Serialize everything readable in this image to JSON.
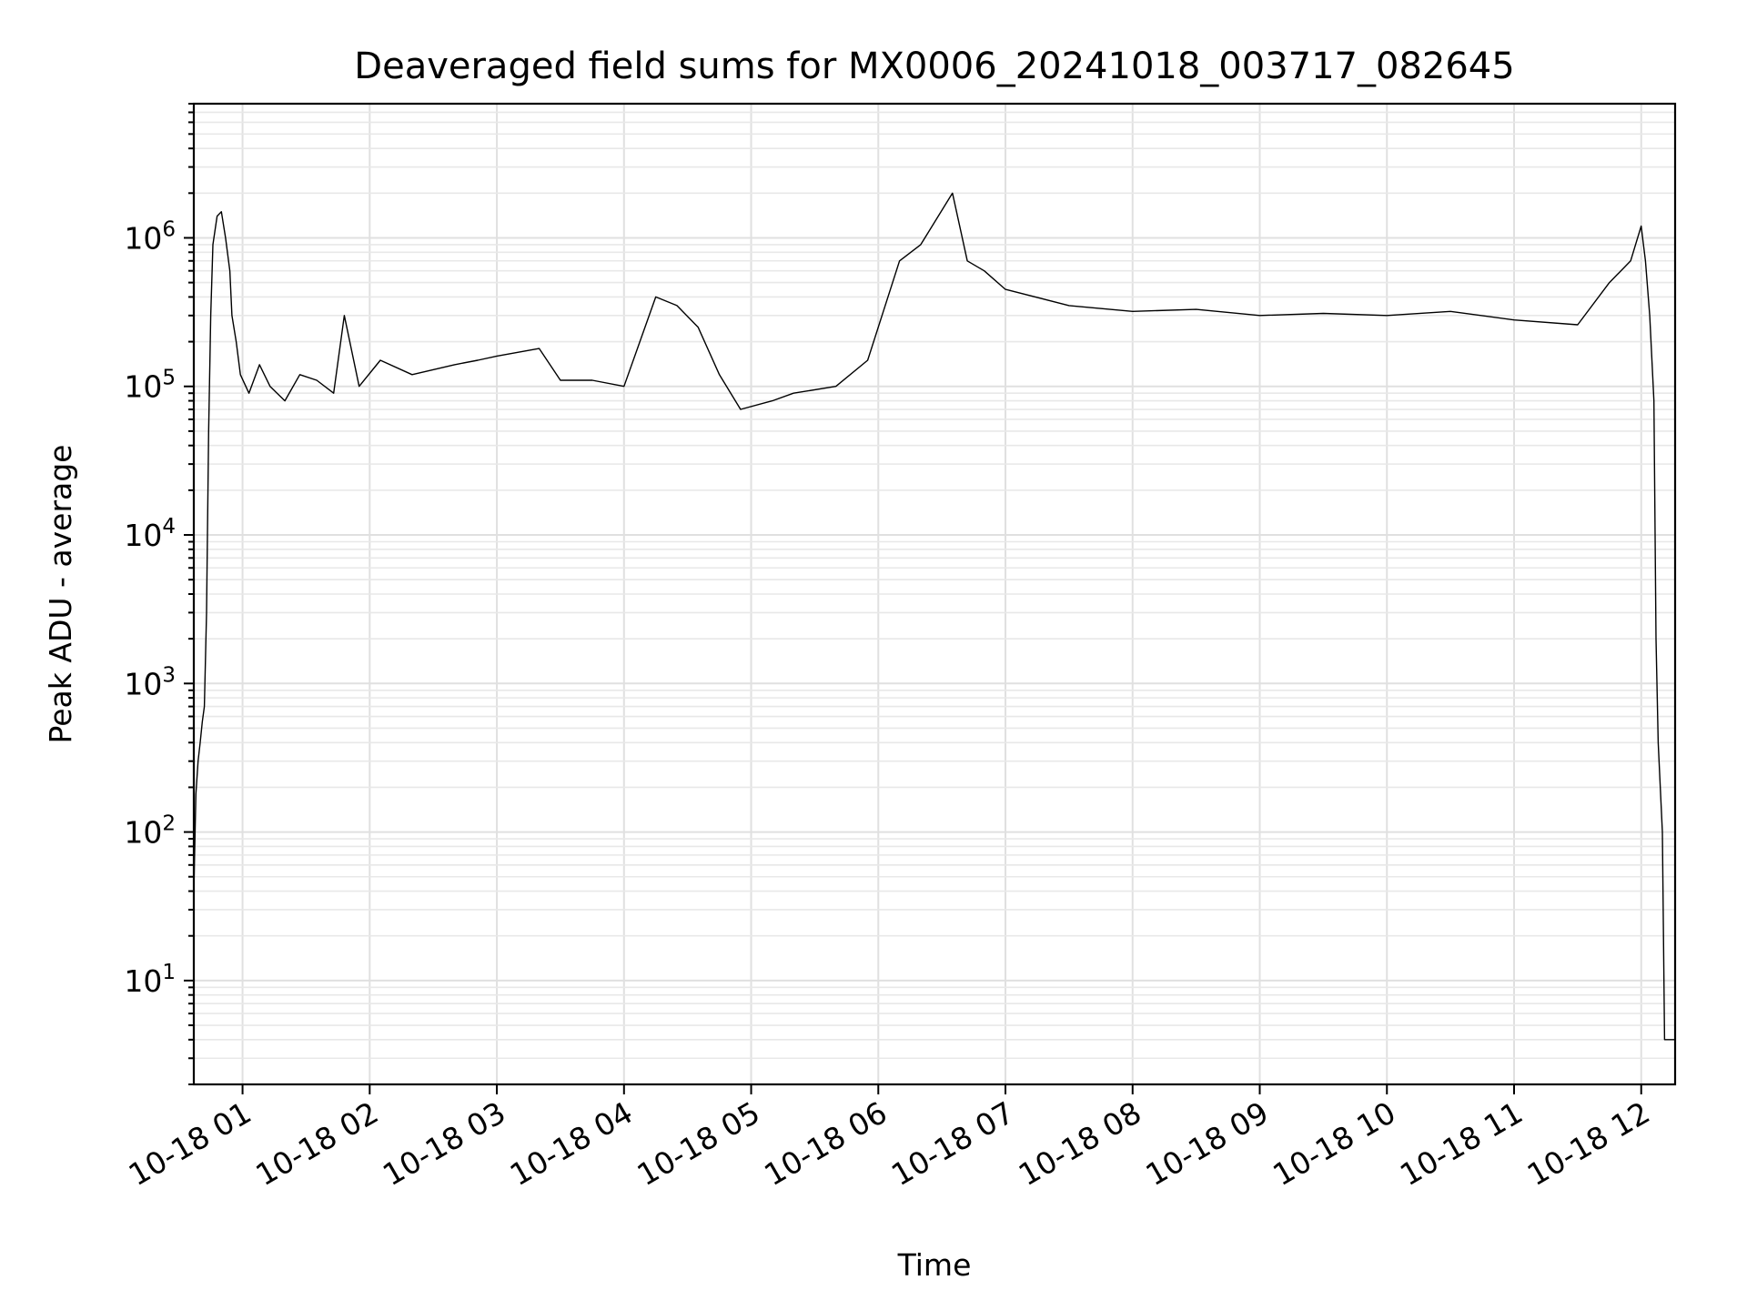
{
  "chart_data": {
    "type": "line",
    "title": "Deaveraged field sums for MX0006_20241018_003717_082645",
    "xlabel": "Time",
    "ylabel": "Peak ADU - average",
    "yscale": "log",
    "xlim": [
      "2024-10-18 00:37",
      "2024-10-18 12:16"
    ],
    "ylim": [
      2,
      8000000
    ],
    "x_ticks": [
      {
        "value": "2024-10-18 01:00",
        "label": "10-18 01"
      },
      {
        "value": "2024-10-18 02:00",
        "label": "10-18 02"
      },
      {
        "value": "2024-10-18 03:00",
        "label": "10-18 03"
      },
      {
        "value": "2024-10-18 04:00",
        "label": "10-18 04"
      },
      {
        "value": "2024-10-18 05:00",
        "label": "10-18 05"
      },
      {
        "value": "2024-10-18 06:00",
        "label": "10-18 06"
      },
      {
        "value": "2024-10-18 07:00",
        "label": "10-18 07"
      },
      {
        "value": "2024-10-18 08:00",
        "label": "10-18 08"
      },
      {
        "value": "2024-10-18 09:00",
        "label": "10-18 09"
      },
      {
        "value": "2024-10-18 10:00",
        "label": "10-18 10"
      },
      {
        "value": "2024-10-18 11:00",
        "label": "10-18 11"
      },
      {
        "value": "2024-10-18 12:00",
        "label": "10-18 12"
      }
    ],
    "y_ticks": [
      {
        "value": 10,
        "base": "10",
        "exp": "1"
      },
      {
        "value": 100,
        "base": "10",
        "exp": "2"
      },
      {
        "value": 1000,
        "base": "10",
        "exp": "3"
      },
      {
        "value": 10000,
        "base": "10",
        "exp": "4"
      },
      {
        "value": 100000,
        "base": "10",
        "exp": "5"
      },
      {
        "value": 1000000,
        "base": "10",
        "exp": "6"
      }
    ],
    "grid": true,
    "legend": "none",
    "colors": {
      "series": "#000000",
      "grid": "#e0e0e0",
      "background": "#ffffff"
    },
    "series": [
      {
        "x": [
          "2024-10-18 00:37",
          "2024-10-18 00:38",
          "2024-10-18 00:39",
          "2024-10-18 00:40",
          "2024-10-18 00:41",
          "2024-10-18 00:42",
          "2024-10-18 00:43",
          "2024-10-18 00:44",
          "2024-10-18 00:45",
          "2024-10-18 00:46",
          "2024-10-18 00:48",
          "2024-10-18 00:50",
          "2024-10-18 00:52",
          "2024-10-18 00:54",
          "2024-10-18 00:55",
          "2024-10-18 00:57",
          "2024-10-18 00:59",
          "2024-10-18 01:03",
          "2024-10-18 01:08",
          "2024-10-18 01:13",
          "2024-10-18 01:20",
          "2024-10-18 01:27",
          "2024-10-18 01:35",
          "2024-10-18 01:43",
          "2024-10-18 01:48",
          "2024-10-18 01:55",
          "2024-10-18 02:05",
          "2024-10-18 02:20",
          "2024-10-18 02:40",
          "2024-10-18 02:51",
          "2024-10-18 03:00",
          "2024-10-18 03:20",
          "2024-10-18 03:30",
          "2024-10-18 03:45",
          "2024-10-18 04:00",
          "2024-10-18 04:15",
          "2024-10-18 04:25",
          "2024-10-18 04:35",
          "2024-10-18 04:45",
          "2024-10-18 04:55",
          "2024-10-18 05:10",
          "2024-10-18 05:20",
          "2024-10-18 05:40",
          "2024-10-18 05:55",
          "2024-10-18 06:10",
          "2024-10-18 06:20",
          "2024-10-18 06:35",
          "2024-10-18 06:42",
          "2024-10-18 06:50",
          "2024-10-18 07:00",
          "2024-10-18 07:30",
          "2024-10-18 08:00",
          "2024-10-18 08:30",
          "2024-10-18 09:00",
          "2024-10-18 09:30",
          "2024-10-18 10:00",
          "2024-10-18 10:30",
          "2024-10-18 11:00",
          "2024-10-18 11:30",
          "2024-10-18 11:45",
          "2024-10-18 11:55",
          "2024-10-18 12:00",
          "2024-10-18 12:02",
          "2024-10-18 12:04",
          "2024-10-18 12:06",
          "2024-10-18 12:07",
          "2024-10-18 12:08",
          "2024-10-18 12:09",
          "2024-10-18 12:10",
          "2024-10-18 12:11",
          "2024-10-18 12:12",
          "2024-10-18 12:16"
        ],
        "y": [
          40,
          180,
          300,
          400,
          550,
          700,
          3000,
          50000,
          300000,
          900000,
          1400000,
          1500000,
          1000000,
          600000,
          300000,
          200000,
          120000,
          90000,
          140000,
          100000,
          80000,
          120000,
          110000,
          90000,
          300000,
          100000,
          150000,
          120000,
          140000,
          150000,
          160000,
          180000,
          110000,
          110000,
          100000,
          400000,
          350000,
          250000,
          120000,
          70000,
          80000,
          90000,
          100000,
          150000,
          700000,
          900000,
          2000000,
          700000,
          600000,
          450000,
          350000,
          320000,
          330000,
          300000,
          310000,
          300000,
          320000,
          280000,
          260000,
          500000,
          700000,
          1200000,
          700000,
          300000,
          80000,
          2000,
          400,
          200,
          100,
          4,
          4,
          4
        ]
      }
    ]
  }
}
